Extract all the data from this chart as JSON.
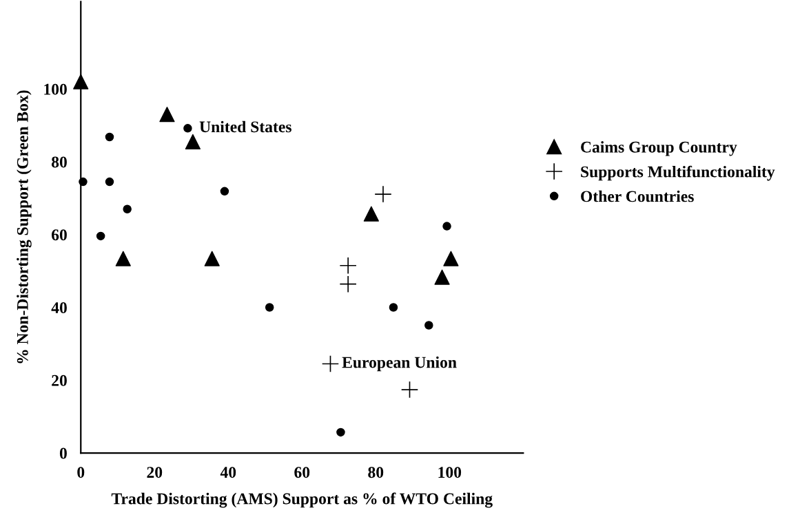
{
  "chart_data": {
    "type": "scatter",
    "xlabel": "Trade Distorting (AMS) Support as % of WTO Ceiling",
    "ylabel": "% Non-Distorting Support (Green Box)",
    "xlim": [
      0,
      120
    ],
    "ylim": [
      0,
      124
    ],
    "xticks": [
      0,
      20,
      40,
      60,
      80,
      100
    ],
    "yticks": [
      0,
      20,
      40,
      60,
      80,
      100
    ],
    "grid": false,
    "legend": "right",
    "series": [
      {
        "name": "Caims Group Country",
        "color": "#000000",
        "marker": "triangle",
        "x": [
          0,
          23.4,
          30.4,
          11.5,
          35.6,
          78.8,
          100.4,
          98
        ],
        "values": [
          102,
          93,
          85.5,
          53.4,
          53.4,
          65.7,
          53.4,
          48.3
        ]
      },
      {
        "name": "Supports Multifunctionality",
        "color": "#000000",
        "marker": "cross",
        "x": [
          82,
          72.5,
          72.5,
          67.7,
          89.2
        ],
        "values": [
          71.1,
          51.5,
          46.4,
          24.5,
          17.4
        ]
      },
      {
        "name": "Other Countries",
        "color": "#000000",
        "marker": "circle",
        "x": [
          29,
          7.8,
          0.6,
          7.8,
          39,
          12.6,
          5.4,
          51.2,
          99.3,
          84.8,
          94.4,
          70.5
        ],
        "values": [
          89.2,
          86.8,
          74.5,
          74.5,
          71.9,
          67,
          59.6,
          40,
          62.3,
          40,
          35.1,
          5.7
        ]
      }
    ],
    "annotations": [
      {
        "text": "United States",
        "x": 29,
        "y": 89.2
      },
      {
        "text": "European Union",
        "x": 67.7,
        "y": 24.5
      }
    ]
  }
}
